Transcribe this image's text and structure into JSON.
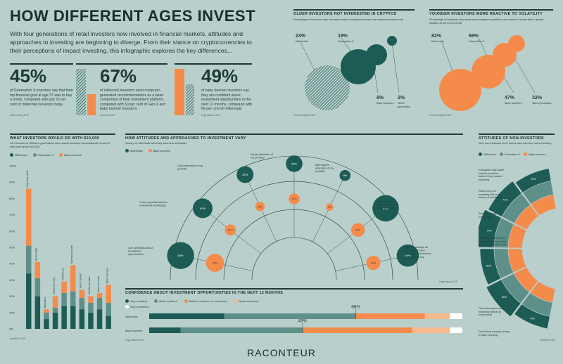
{
  "header": {
    "title": "HOW DIFFERENT AGES INVEST",
    "intro": "With four generations of retail investors now involved in financial markets, attitudes and approaches to investing are beginning to diverge. From their stance on cryptocurrencies to their perceptions of impact investing, this infographic explores the key differences..."
  },
  "colors": {
    "dark": "#1d5c55",
    "mid": "#5f8f89",
    "orange": "#f58b4b",
    "peach": "#f7b98e",
    "bg": "#b9cfcc"
  },
  "stats": [
    {
      "value": "45%",
      "text": "of Generation X investors say that their top financial goal at age 37 was to buy a home, compared with just 23 per cent of millennial investors today",
      "source": "CNA Lending 2019"
    },
    {
      "value": "67%",
      "text": "of millennial investors want computer-generated recommendations as a basic component of their investment platform, compared with 50 per cent of Gen X and baby boomer investors",
      "source": "Accenture 2017"
    },
    {
      "value": "49%",
      "text": "of baby boomer investors say they are confident about investment opportunities in the next 12 months, compared with 66 per cent of millennials",
      "source": "Legg Mason 2019"
    }
  ],
  "crypto": {
    "title": "OLDER INVESTORS NOT INTERESTED IN CRYPTOS",
    "subtitle": "Percentage of investors who currently invest in cryptocurrencies, non-retired investors only",
    "source": "eToro/ruhrgebiet 2019",
    "items": [
      {
        "pct": "23%",
        "label": "Millennials",
        "value": 23
      },
      {
        "pct": "19%",
        "label": "Generation X",
        "value": 19
      },
      {
        "pct": "8%",
        "label": "Baby boomers",
        "value": 8
      },
      {
        "pct": "2%",
        "label": "Silent generation",
        "value": 2
      }
    ]
  },
  "volatility": {
    "title": "YOUNGER INVESTORS MORE REACTIVE TO VOLATILITY",
    "subtitle": "Percentage of investors who made any changes to portfolios as a result of sharp falls in global equities at the end of 2018",
    "source": "eToro/ruhrgebiet 2019",
    "items": [
      {
        "pct": "82%",
        "label": "Millennials",
        "value": 82
      },
      {
        "pct": "69%",
        "label": "Generation X",
        "value": 69
      },
      {
        "pct": "47%",
        "label": "Baby boomers",
        "value": 47
      },
      {
        "pct": "32%",
        "label": "Silent generation",
        "value": 32
      }
    ]
  },
  "ten_k": {
    "title": "WHAT INVESTORS WOULD DO WITH $10,000",
    "subtitle": "US investors of different generations were asked how they would allocate money if they were given $10,000",
    "legend": [
      "Millennials",
      "Generation X",
      "Baby boomers"
    ],
    "source": "LendEDU 2019"
  },
  "chart_data": [
    {
      "type": "bar",
      "title": "WHAT INVESTORS WOULD DO WITH $10,000",
      "categories": [
        "Pay down debt",
        "Real estate",
        "Education",
        "Virtual currency",
        "Retirement",
        "Savings account",
        "Stock market",
        "Charity/ donation",
        "Bank account",
        "Other/ Unsure"
      ],
      "series": [
        {
          "name": "Millennials",
          "values": [
            34,
            20,
            6,
            10,
            14,
            14,
            12,
            10,
            12,
            8
          ]
        },
        {
          "name": "Generation X",
          "values": [
            17,
            11,
            4,
            3,
            8,
            9,
            7,
            6,
            7,
            8
          ]
        },
        {
          "name": "Baby boomers",
          "values": [
            35,
            10,
            2,
            7,
            7,
            16,
            5,
            4,
            3,
            11
          ]
        }
      ],
      "stacked": true,
      "yticks": [
        "0%",
        "10%",
        "20%",
        "30%",
        "40%",
        "50%",
        "60%",
        "70%",
        "80%",
        "90%",
        "100%"
      ],
      "ylim": [
        0,
        100
      ]
    },
    {
      "type": "bar",
      "title": "CONFIDENCE ABOUT INVESTMENT OPPORTUNITIES IN THE NEXT 12 MONTHS",
      "categories": [
        "Millennials",
        "Baby boomers"
      ],
      "series": [
        {
          "name": "Very confident",
          "values": [
            24,
            10
          ]
        },
        {
          "name": "Quite confident",
          "values": [
            42,
            39
          ]
        },
        {
          "name": "Neither confident nor concerned",
          "values": [
            22,
            35
          ]
        },
        {
          "name": "Quite concerned",
          "values": [
            8,
            12
          ]
        },
        {
          "name": "Very concerned",
          "values": [
            4,
            4
          ]
        }
      ],
      "markers": [
        "66%",
        "49%"
      ],
      "stacked": true,
      "orientation": "horizontal",
      "xlim": [
        0,
        100
      ]
    }
  ],
  "attitudes": {
    "title": "HOW ATTITUDES AND APPROACHES TO INVESTMENT VARY",
    "subtitle": "Survey of millennials and baby boomers worldwide",
    "legend": [
      "Millennials",
      "Baby boomers"
    ],
    "source": "Legg Mason 2019",
    "statements": [
      {
        "text": "I am optimistic about investment opportunities",
        "m": "66%",
        "b": "49%",
        "mv": 66,
        "bv": 49
      },
      {
        "text": "I have expert/advanced investment knowledge",
        "m": "40%",
        "b": "21%",
        "mv": 40,
        "bv": 21
      },
      {
        "text": "Cash allocation of my portfolio",
        "m": "30%",
        "b": "15%",
        "mv": 30,
        "bv": 15
      },
      {
        "text": "Equity allocation of my portfolio",
        "m": "29%",
        "b": "21%",
        "mv": 29,
        "bv": 21
      },
      {
        "text": "Alternatives allocation of my portfolio",
        "m": "9%",
        "b": "7%",
        "mv": 9,
        "bv": 7
      },
      {
        "text": "I choose funds according to ESG considerations",
        "m": "64%",
        "b": "32%",
        "mv": 64,
        "bv": 32
      },
      {
        "text": "I like to manage all personal finance, including investments, in the same app",
        "m": "49%",
        "b": "34%",
        "mv": 49,
        "bv": 34
      }
    ]
  },
  "confidence": {
    "title": "CONFIDENCE ABOUT INVESTMENT OPPORTUNITIES IN THE NEXT 12 MONTHS",
    "legend": [
      "Very confident",
      "Quite confident",
      "Neither confident nor concerned",
      "Quite concerned",
      "Very concerned"
    ],
    "rows": [
      "Millennials",
      "Baby boomers"
    ],
    "markers": [
      "66%",
      "49%"
    ],
    "source": "Legg Mason 2019"
  },
  "non_investors": {
    "title": "ATTITUDES OF NON-INVESTORS",
    "subtitle": "Why non-investors don't invest, and how they view investing",
    "legend": [
      "Millennials",
      "Generation X",
      "Baby boomers"
    ],
    "source": "Blackbird 2019",
    "statements": [
      "Recognise that future outlook would be better if they started investing",
      "Want to try out investing with a low money commitment",
      "Afraid of losing everything",
      "Too worried about their financial situation today to think about the future",
      "Find information about investing difficult to understand",
      "Don't have enough money to start investing"
    ],
    "values": [
      "51%",
      "73%",
      "74%",
      "51%",
      "66%",
      "79%"
    ]
  },
  "footer": {
    "brand": "RACONTEUR"
  }
}
